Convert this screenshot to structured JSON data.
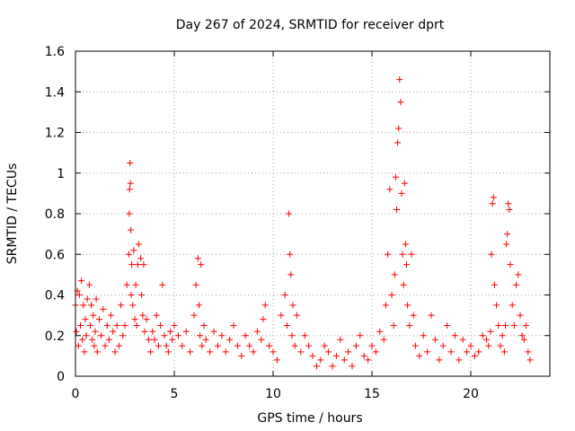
{
  "chart_data": {
    "type": "scatter",
    "title": "Day 267 of 2024, SRMTID for receiver dprt",
    "xlabel": "GPS time / hours",
    "ylabel": "SRMTID / TECUs",
    "xlim": [
      0,
      24
    ],
    "ylim": [
      0,
      1.6
    ],
    "xticks": [
      0,
      5,
      10,
      15,
      20
    ],
    "yticks": [
      0,
      0.2,
      0.4,
      0.6,
      0.8,
      1,
      1.2,
      1.4,
      1.6
    ],
    "xtick_labels": [
      "0",
      "5",
      "10",
      "15",
      "20"
    ],
    "ytick_labels": [
      "0",
      "0.2",
      "0.4",
      "0.6",
      "0.8",
      "1",
      "1.2",
      "1.4",
      "1.6"
    ],
    "grid": true,
    "marker": "plus",
    "series": [
      {
        "name": "SRMTID",
        "color": "#ff0000",
        "x": [
          0.0,
          0.05,
          0.1,
          0.15,
          0.2,
          0.25,
          0.3,
          0.35,
          0.4,
          0.45,
          0.5,
          0.55,
          0.6,
          0.7,
          0.75,
          0.8,
          0.85,
          0.9,
          0.95,
          1.0,
          1.05,
          1.1,
          1.2,
          1.3,
          1.4,
          1.5,
          1.6,
          1.7,
          1.8,
          1.9,
          2.0,
          2.1,
          2.2,
          2.3,
          2.4,
          2.5,
          2.6,
          2.7,
          2.72,
          2.74,
          2.76,
          2.78,
          2.8,
          2.82,
          2.85,
          2.9,
          2.95,
          3.0,
          3.05,
          3.1,
          3.15,
          3.2,
          3.3,
          3.35,
          3.4,
          3.45,
          3.5,
          3.6,
          3.7,
          3.8,
          3.9,
          4.0,
          4.1,
          4.2,
          4.3,
          4.4,
          4.5,
          4.6,
          4.7,
          4.8,
          4.9,
          5.0,
          5.2,
          5.4,
          5.6,
          5.8,
          6.0,
          6.1,
          6.2,
          6.25,
          6.3,
          6.35,
          6.4,
          6.5,
          6.6,
          6.8,
          7.0,
          7.2,
          7.4,
          7.6,
          7.8,
          8.0,
          8.2,
          8.4,
          8.6,
          8.8,
          9.0,
          9.2,
          9.4,
          9.5,
          9.6,
          9.8,
          10.0,
          10.2,
          10.4,
          10.6,
          10.7,
          10.8,
          10.85,
          10.9,
          10.95,
          11.0,
          11.1,
          11.2,
          11.4,
          11.6,
          11.8,
          12.0,
          12.2,
          12.4,
          12.6,
          12.8,
          13.0,
          13.2,
          13.4,
          13.6,
          13.8,
          14.0,
          14.2,
          14.4,
          14.6,
          14.8,
          15.0,
          15.2,
          15.4,
          15.6,
          15.7,
          15.8,
          15.9,
          16.0,
          16.1,
          16.15,
          16.2,
          16.25,
          16.3,
          16.35,
          16.4,
          16.45,
          16.5,
          16.55,
          16.6,
          16.65,
          16.7,
          16.75,
          16.8,
          16.9,
          17.0,
          17.1,
          17.2,
          17.4,
          17.6,
          17.8,
          18.0,
          18.2,
          18.4,
          18.6,
          18.8,
          19.0,
          19.2,
          19.4,
          19.6,
          19.8,
          20.0,
          20.2,
          20.4,
          20.6,
          20.8,
          20.9,
          21.0,
          21.05,
          21.1,
          21.15,
          21.2,
          21.3,
          21.4,
          21.5,
          21.6,
          21.7,
          21.75,
          21.8,
          21.85,
          21.9,
          21.95,
          22.0,
          22.1,
          22.2,
          22.3,
          22.4,
          22.5,
          22.6,
          22.7,
          22.8,
          22.9,
          23.0
        ],
        "y": [
          0.35,
          0.22,
          0.42,
          0.15,
          0.4,
          0.25,
          0.47,
          0.18,
          0.35,
          0.12,
          0.28,
          0.2,
          0.38,
          0.45,
          0.25,
          0.35,
          0.18,
          0.3,
          0.15,
          0.22,
          0.38,
          0.12,
          0.28,
          0.2,
          0.33,
          0.15,
          0.25,
          0.18,
          0.3,
          0.22,
          0.12,
          0.25,
          0.15,
          0.35,
          0.2,
          0.25,
          0.45,
          0.6,
          0.8,
          0.92,
          1.05,
          0.95,
          0.72,
          0.4,
          0.55,
          0.35,
          0.62,
          0.28,
          0.45,
          0.25,
          0.55,
          0.65,
          0.58,
          0.4,
          0.3,
          0.55,
          0.22,
          0.28,
          0.18,
          0.12,
          0.22,
          0.18,
          0.3,
          0.15,
          0.25,
          0.45,
          0.2,
          0.15,
          0.12,
          0.22,
          0.18,
          0.25,
          0.2,
          0.15,
          0.22,
          0.12,
          0.3,
          0.45,
          0.58,
          0.35,
          0.2,
          0.55,
          0.15,
          0.25,
          0.18,
          0.12,
          0.22,
          0.15,
          0.2,
          0.12,
          0.18,
          0.25,
          0.15,
          0.1,
          0.2,
          0.15,
          0.12,
          0.22,
          0.18,
          0.28,
          0.35,
          0.15,
          0.12,
          0.08,
          0.3,
          0.4,
          0.25,
          0.8,
          0.6,
          0.5,
          0.2,
          0.35,
          0.15,
          0.3,
          0.12,
          0.2,
          0.15,
          0.1,
          0.05,
          0.08,
          0.15,
          0.12,
          0.05,
          0.1,
          0.18,
          0.08,
          0.12,
          0.05,
          0.15,
          0.2,
          0.1,
          0.08,
          0.15,
          0.12,
          0.22,
          0.18,
          0.35,
          0.6,
          0.92,
          0.4,
          0.25,
          0.5,
          0.98,
          0.82,
          1.15,
          1.22,
          1.46,
          1.35,
          0.9,
          0.6,
          0.45,
          0.95,
          0.65,
          0.55,
          0.35,
          0.25,
          0.6,
          0.3,
          0.15,
          0.1,
          0.2,
          0.12,
          0.3,
          0.18,
          0.08,
          0.15,
          0.25,
          0.12,
          0.2,
          0.08,
          0.18,
          0.12,
          0.15,
          0.1,
          0.12,
          0.2,
          0.18,
          0.15,
          0.22,
          0.6,
          0.85,
          0.88,
          0.45,
          0.35,
          0.25,
          0.15,
          0.2,
          0.12,
          0.25,
          0.65,
          0.7,
          0.85,
          0.82,
          0.55,
          0.35,
          0.25,
          0.45,
          0.5,
          0.3,
          0.2,
          0.18,
          0.25,
          0.12,
          0.08
        ]
      }
    ]
  }
}
